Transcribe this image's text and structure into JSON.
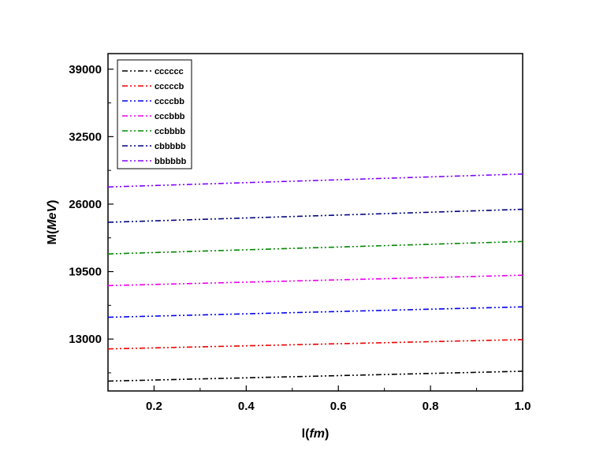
{
  "chart_data": {
    "type": "line",
    "xlabel_prefix": "l(",
    "xlabel_italic": "fm",
    "xlabel_suffix": ")",
    "ylabel_prefix": "M(",
    "ylabel_italic": "MeV",
    "ylabel_suffix": ")",
    "xlim": [
      0.1,
      1.0
    ],
    "ylim": [
      8000,
      40500
    ],
    "x_ticks": [
      0.2,
      0.4,
      0.6,
      0.8,
      1.0
    ],
    "x_tick_labels": [
      "0.2",
      "0.4",
      "0.6",
      "0.8",
      "1.0"
    ],
    "y_ticks": [
      13000,
      19500,
      26000,
      32500,
      39000
    ],
    "y_tick_labels": [
      "13000",
      "19500",
      "26000",
      "32500",
      "39000"
    ],
    "legend_position": "top-left",
    "grid": false,
    "x": [
      0.1,
      1.0
    ],
    "series": [
      {
        "name": "cccccc",
        "color": "#000000",
        "values": [
          8950,
          9900
        ]
      },
      {
        "name": "cccccb",
        "color": "#ee0000",
        "values": [
          12050,
          12950
        ]
      },
      {
        "name": "ccccbb",
        "color": "#0000ee",
        "values": [
          15100,
          16100
        ]
      },
      {
        "name": "cccbbb",
        "color": "#ee00ee",
        "values": [
          18150,
          19150
        ]
      },
      {
        "name": "ccbbbb",
        "color": "#008800",
        "values": [
          21200,
          22400
        ]
      },
      {
        "name": "cbbbbb",
        "color": "#000080",
        "values": [
          24250,
          25500
        ]
      },
      {
        "name": "bbbbbb",
        "color": "#7f00ff",
        "values": [
          27650,
          28900
        ]
      }
    ]
  }
}
